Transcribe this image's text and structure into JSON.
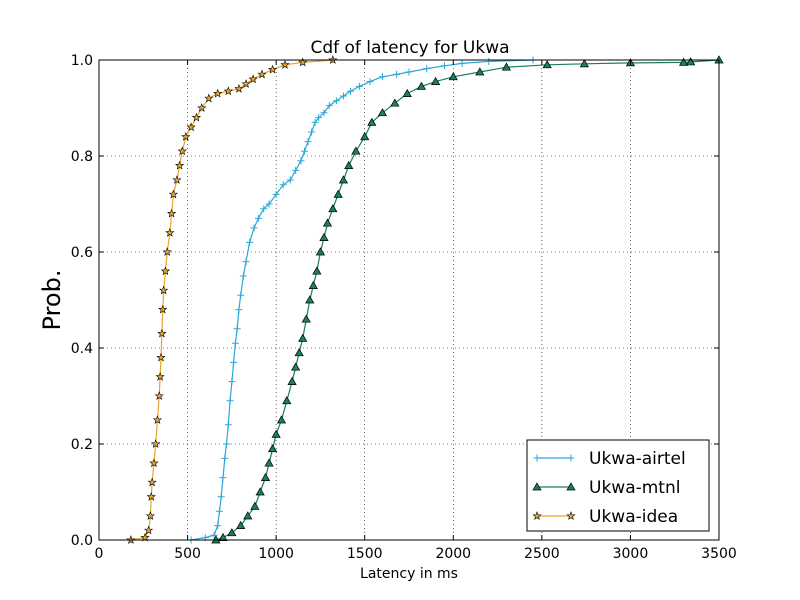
{
  "chart_data": {
    "type": "line",
    "title": "Cdf of latency for Ukwa",
    "xlabel": "Latency in ms",
    "ylabel": "Prob.",
    "xlim": [
      0,
      3500
    ],
    "ylim": [
      0,
      1.0
    ],
    "xticks": [
      0,
      500,
      1000,
      1500,
      2000,
      2500,
      3000,
      3500
    ],
    "yticks": [
      0.0,
      0.2,
      0.4,
      0.6,
      0.8,
      1.0
    ],
    "xtick_labels": [
      "0",
      "500",
      "1000",
      "1500",
      "2000",
      "2500",
      "3000",
      "3500"
    ],
    "ytick_labels": [
      "0.0",
      "0.2",
      "0.4",
      "0.6",
      "0.8",
      "1.0"
    ],
    "grid": true,
    "legend_position": "bottom-right",
    "series": [
      {
        "name": "Ukwa-airtel",
        "color": "#2ba8d8",
        "marker": "plus",
        "points": [
          [
            520,
            0.0
          ],
          [
            600,
            0.005
          ],
          [
            650,
            0.01
          ],
          [
            670,
            0.03
          ],
          [
            680,
            0.06
          ],
          [
            690,
            0.09
          ],
          [
            700,
            0.13
          ],
          [
            710,
            0.17
          ],
          [
            720,
            0.2
          ],
          [
            730,
            0.24
          ],
          [
            740,
            0.29
          ],
          [
            750,
            0.33
          ],
          [
            760,
            0.37
          ],
          [
            770,
            0.41
          ],
          [
            780,
            0.44
          ],
          [
            790,
            0.48
          ],
          [
            800,
            0.51
          ],
          [
            815,
            0.55
          ],
          [
            830,
            0.58
          ],
          [
            850,
            0.62
          ],
          [
            875,
            0.65
          ],
          [
            900,
            0.67
          ],
          [
            930,
            0.69
          ],
          [
            960,
            0.7
          ],
          [
            1000,
            0.72
          ],
          [
            1040,
            0.74
          ],
          [
            1080,
            0.75
          ],
          [
            1110,
            0.77
          ],
          [
            1140,
            0.79
          ],
          [
            1160,
            0.81
          ],
          [
            1180,
            0.83
          ],
          [
            1200,
            0.85
          ],
          [
            1220,
            0.87
          ],
          [
            1240,
            0.88
          ],
          [
            1270,
            0.89
          ],
          [
            1300,
            0.905
          ],
          [
            1340,
            0.915
          ],
          [
            1380,
            0.925
          ],
          [
            1420,
            0.935
          ],
          [
            1470,
            0.945
          ],
          [
            1530,
            0.955
          ],
          [
            1600,
            0.965
          ],
          [
            1680,
            0.97
          ],
          [
            1750,
            0.975
          ],
          [
            1850,
            0.982
          ],
          [
            1950,
            0.988
          ],
          [
            2050,
            0.993
          ],
          [
            2200,
            0.997
          ],
          [
            2450,
            1.0
          ]
        ]
      },
      {
        "name": "Ukwa-mtnl",
        "color": "#1a7f5a",
        "marker": "triangle",
        "points": [
          [
            660,
            0.0
          ],
          [
            700,
            0.005
          ],
          [
            750,
            0.015
          ],
          [
            800,
            0.03
          ],
          [
            840,
            0.05
          ],
          [
            880,
            0.07
          ],
          [
            910,
            0.1
          ],
          [
            940,
            0.13
          ],
          [
            960,
            0.16
          ],
          [
            980,
            0.19
          ],
          [
            1000,
            0.22
          ],
          [
            1030,
            0.25
          ],
          [
            1060,
            0.29
          ],
          [
            1090,
            0.33
          ],
          [
            1110,
            0.36
          ],
          [
            1130,
            0.39
          ],
          [
            1150,
            0.42
          ],
          [
            1170,
            0.46
          ],
          [
            1190,
            0.5
          ],
          [
            1210,
            0.53
          ],
          [
            1230,
            0.56
          ],
          [
            1250,
            0.6
          ],
          [
            1270,
            0.63
          ],
          [
            1290,
            0.66
          ],
          [
            1320,
            0.69
          ],
          [
            1350,
            0.72
          ],
          [
            1380,
            0.75
          ],
          [
            1410,
            0.78
          ],
          [
            1450,
            0.81
          ],
          [
            1500,
            0.84
          ],
          [
            1540,
            0.87
          ],
          [
            1600,
            0.89
          ],
          [
            1670,
            0.91
          ],
          [
            1740,
            0.93
          ],
          [
            1820,
            0.945
          ],
          [
            1900,
            0.955
          ],
          [
            2000,
            0.965
          ],
          [
            2150,
            0.975
          ],
          [
            2300,
            0.985
          ],
          [
            2530,
            0.99
          ],
          [
            2740,
            0.992
          ],
          [
            3000,
            0.994
          ],
          [
            3300,
            0.995
          ],
          [
            3340,
            0.996
          ],
          [
            3500,
            1.0
          ]
        ]
      },
      {
        "name": "Ukwa-idea",
        "color": "#e8a52c",
        "marker": "star",
        "points": [
          [
            180,
            0.0
          ],
          [
            260,
            0.005
          ],
          [
            280,
            0.02
          ],
          [
            290,
            0.05
          ],
          [
            295,
            0.09
          ],
          [
            300,
            0.12
          ],
          [
            310,
            0.16
          ],
          [
            320,
            0.2
          ],
          [
            330,
            0.25
          ],
          [
            340,
            0.3
          ],
          [
            345,
            0.34
          ],
          [
            350,
            0.38
          ],
          [
            355,
            0.43
          ],
          [
            360,
            0.48
          ],
          [
            365,
            0.52
          ],
          [
            375,
            0.56
          ],
          [
            385,
            0.6
          ],
          [
            400,
            0.64
          ],
          [
            410,
            0.68
          ],
          [
            420,
            0.72
          ],
          [
            440,
            0.75
          ],
          [
            455,
            0.78
          ],
          [
            470,
            0.81
          ],
          [
            490,
            0.84
          ],
          [
            520,
            0.86
          ],
          [
            550,
            0.88
          ],
          [
            580,
            0.9
          ],
          [
            620,
            0.92
          ],
          [
            670,
            0.93
          ],
          [
            730,
            0.935
          ],
          [
            790,
            0.94
          ],
          [
            830,
            0.95
          ],
          [
            870,
            0.96
          ],
          [
            920,
            0.97
          ],
          [
            980,
            0.98
          ],
          [
            1050,
            0.99
          ],
          [
            1150,
            0.995
          ],
          [
            1320,
            1.0
          ]
        ]
      }
    ]
  }
}
